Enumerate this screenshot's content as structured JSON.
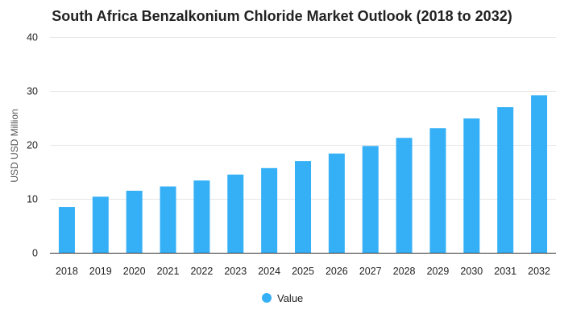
{
  "chart_data": {
    "type": "bar",
    "title": "South Africa Benzalkonium Chloride Market Outlook (2018 to 2032)",
    "xlabel": "",
    "ylabel": "USD USD Million",
    "categories": [
      "2018",
      "2019",
      "2020",
      "2021",
      "2022",
      "2023",
      "2024",
      "2025",
      "2026",
      "2027",
      "2028",
      "2029",
      "2030",
      "2031",
      "2032"
    ],
    "series": [
      {
        "name": "Value",
        "values": [
          8.5,
          10.4,
          11.5,
          12.3,
          13.4,
          14.5,
          15.7,
          17.0,
          18.4,
          19.8,
          21.3,
          23.1,
          24.9,
          27.0,
          29.2
        ],
        "color": "#35b0f6"
      }
    ],
    "ylim": [
      0,
      40
    ],
    "yticks": [
      "0",
      "10",
      "20",
      "30",
      "40"
    ],
    "grid": true,
    "gridColor": "#e6e6e6",
    "legend": "bottom-center"
  }
}
